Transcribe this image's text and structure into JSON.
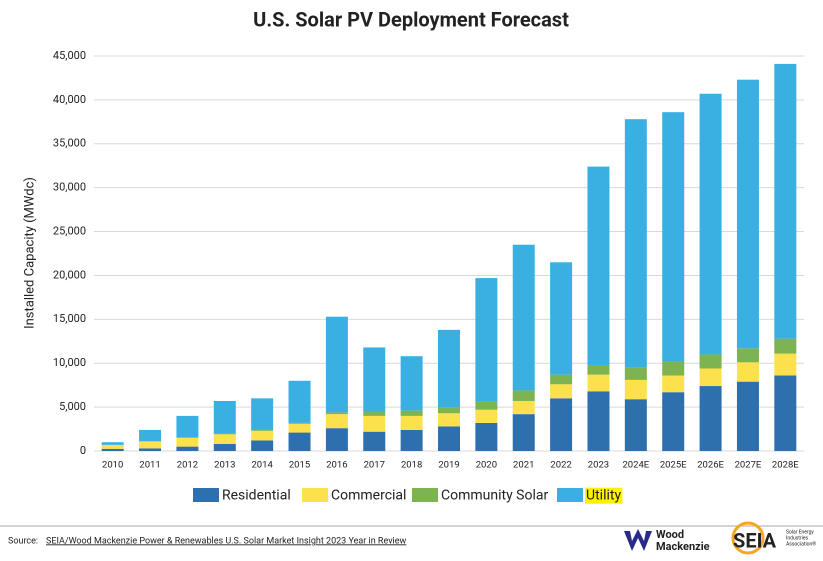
{
  "chart_data": {
    "type": "stacked_bar",
    "title": "U.S. Solar PV Deployment Forecast",
    "y_label": "Installed Capacity (MWdc)",
    "categories": [
      "2010",
      "2011",
      "2012",
      "2013",
      "2014",
      "2015",
      "2016",
      "2017",
      "2018",
      "2019",
      "2020",
      "2021",
      "2022",
      "2023",
      "2024E",
      "2025E",
      "2026E",
      "2027E",
      "2028E"
    ],
    "series": [
      {
        "name": "Residential",
        "color": "#2e6fad",
        "values": [
          250,
          300,
          500,
          800,
          1200,
          2100,
          2600,
          2200,
          2400,
          2800,
          3200,
          4200,
          6000,
          6800,
          5900,
          6700,
          7400,
          7900,
          8600
        ]
      },
      {
        "name": "Commercial",
        "color": "#fde14c",
        "values": [
          450,
          800,
          1000,
          1100,
          1100,
          1000,
          1600,
          1800,
          1600,
          1500,
          1500,
          1500,
          1600,
          1900,
          2200,
          1900,
          2000,
          2200,
          2500
        ]
      },
      {
        "name": "Community Solar",
        "color": "#7db350",
        "values": [
          0,
          0,
          50,
          50,
          100,
          100,
          200,
          500,
          600,
          700,
          900,
          1200,
          1100,
          1100,
          1400,
          1600,
          1600,
          1600,
          1700
        ]
      },
      {
        "name": "Utility",
        "color": "#3ab0e2",
        "values": [
          300,
          1300,
          2450,
          3750,
          3600,
          4800,
          10900,
          7300,
          6200,
          8800,
          14100,
          16600,
          12800,
          22600,
          28300,
          28400,
          29700,
          30600,
          31300
        ]
      }
    ],
    "ylim": [
      0,
      45000
    ],
    "yticks": [
      0,
      {
        "value": 5000,
        "label": "5,000"
      },
      {
        "value": 10000,
        "label": "10,000"
      },
      {
        "value": 15000,
        "label": "15,000"
      },
      {
        "value": 20000,
        "label": "20,000"
      },
      {
        "value": 25000,
        "label": "25,000"
      },
      {
        "value": 30000,
        "label": "30,000"
      },
      {
        "value": 35000,
        "label": "35,000"
      },
      {
        "value": 40000,
        "label": "40,000"
      },
      {
        "value": 45000,
        "label": "45,000"
      }
    ],
    "grid": true,
    "legend": "bottom"
  },
  "source": {
    "prefix": "Source:",
    "text": "SEIA/Wood Mackenzie Power & Renewables U.S. Solar Market Insight 2023 Year in Review"
  },
  "logos": {
    "wood_mackenzie": [
      "Wood",
      "Mackenzie"
    ],
    "seia": "SEIA",
    "seia_tagline": [
      "Solar Energy",
      "Industries",
      "Association®"
    ]
  }
}
